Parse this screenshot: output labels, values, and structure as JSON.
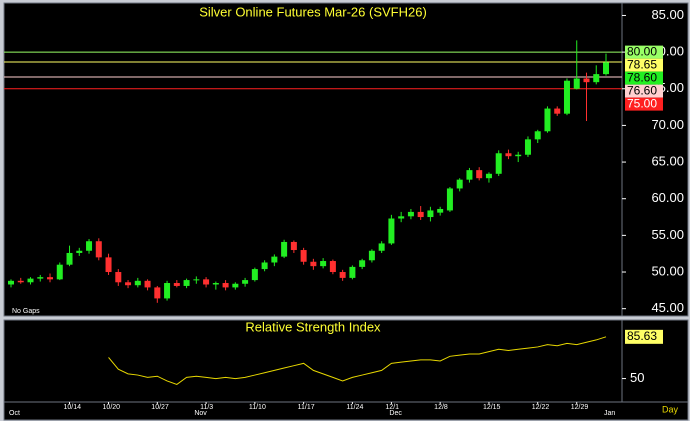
{
  "chart_data": {
    "type": "candlestick",
    "title": "Silver Online Futures Mar-26 (SVFH26)",
    "note": "No Gaps",
    "x_label": "Day",
    "categories": [
      null,
      null,
      null,
      null,
      null,
      null,
      "10/14",
      null,
      null,
      null,
      "10/20",
      null,
      null,
      null,
      null,
      "10/27",
      null,
      null,
      null,
      null,
      "11/3",
      null,
      null,
      null,
      null,
      "11/10",
      null,
      null,
      null,
      null,
      "11/17",
      null,
      null,
      null,
      null,
      "11/24",
      null,
      null,
      null,
      "12/1",
      null,
      null,
      null,
      null,
      "12/8",
      null,
      null,
      null,
      null,
      "12/15",
      null,
      null,
      null,
      null,
      "12/22",
      null,
      null,
      null,
      "12/29",
      null,
      null,
      null
    ],
    "month_categories": [
      "Oct",
      null,
      null,
      null,
      null,
      null,
      null,
      null,
      null,
      null,
      null,
      null,
      null,
      null,
      null,
      null,
      null,
      null,
      null,
      "Nov",
      null,
      null,
      null,
      null,
      null,
      null,
      null,
      null,
      null,
      null,
      null,
      null,
      null,
      null,
      null,
      null,
      null,
      null,
      null,
      "Dec",
      null,
      null,
      null,
      null,
      null,
      null,
      null,
      null,
      null,
      null,
      null,
      null,
      null,
      null,
      null,
      null,
      null,
      null,
      null,
      null,
      null,
      "Jan"
    ],
    "open": [
      48.3,
      48.8,
      48.6,
      49.1,
      49.3,
      49.0,
      51.0,
      52.6,
      52.9,
      54.2,
      52.0,
      50.0,
      48.6,
      48.2,
      48.8,
      47.9,
      46.4,
      48.5,
      48.1,
      48.9,
      49.0,
      48.3,
      48.5,
      47.9,
      48.4,
      48.9,
      50.4,
      51.3,
      52.1,
      54.1,
      53.0,
      51.4,
      50.8,
      51.5,
      50.0,
      49.2,
      50.7,
      51.6,
      52.9,
      53.9,
      57.3,
      57.6,
      58.2,
      57.5,
      58.1,
      58.4,
      61.4,
      62.6,
      63.9,
      62.8,
      63.4,
      66.2,
      65.8,
      66.0,
      68.1,
      69.2,
      72.3,
      71.6,
      75.0,
      76.4,
      75.9,
      77.0
    ],
    "high": [
      49.0,
      49.2,
      49.3,
      49.6,
      49.8,
      51.3,
      53.6,
      53.3,
      54.5,
      54.6,
      52.5,
      50.4,
      48.9,
      49.2,
      49.0,
      48.1,
      48.8,
      48.9,
      49.1,
      49.4,
      49.3,
      48.7,
      48.9,
      48.6,
      49.2,
      50.6,
      51.6,
      52.4,
      54.4,
      54.3,
      53.3,
      51.8,
      51.9,
      51.7,
      50.3,
      50.9,
      51.8,
      53.1,
      54.2,
      57.8,
      58.2,
      58.6,
      59.0,
      58.9,
      58.9,
      61.6,
      62.8,
      64.2,
      64.3,
      63.6,
      66.6,
      66.7,
      66.4,
      68.5,
      69.4,
      72.6,
      72.6,
      76.4,
      81.6,
      77.2,
      78.2,
      79.8
    ],
    "low": [
      47.9,
      48.4,
      48.3,
      48.7,
      48.6,
      48.9,
      50.8,
      52.2,
      52.5,
      51.6,
      49.6,
      48.1,
      47.8,
      47.9,
      47.5,
      45.8,
      46.1,
      47.9,
      47.8,
      48.4,
      47.9,
      47.6,
      47.5,
      47.6,
      48.0,
      48.7,
      50.1,
      50.8,
      51.9,
      52.6,
      51.0,
      50.3,
      50.5,
      49.7,
      48.8,
      49.0,
      50.4,
      51.3,
      52.6,
      53.7,
      56.8,
      57.2,
      57.1,
      56.9,
      57.7,
      58.2,
      61.0,
      62.2,
      62.5,
      62.2,
      63.1,
      65.4,
      65.0,
      65.7,
      67.6,
      69.0,
      71.3,
      71.4,
      74.9,
      70.6,
      75.6,
      76.8
    ],
    "close": [
      48.8,
      48.6,
      49.1,
      49.3,
      49.0,
      51.0,
      52.6,
      52.9,
      54.2,
      52.0,
      50.0,
      48.6,
      48.2,
      48.8,
      47.9,
      46.4,
      48.5,
      48.1,
      48.9,
      49.0,
      48.3,
      48.5,
      47.9,
      48.4,
      48.9,
      50.4,
      51.3,
      52.1,
      54.1,
      53.0,
      51.4,
      50.8,
      51.5,
      50.0,
      49.2,
      50.7,
      51.6,
      52.9,
      53.9,
      57.3,
      57.6,
      58.2,
      57.5,
      58.4,
      58.6,
      61.4,
      62.6,
      63.9,
      62.8,
      63.4,
      66.2,
      65.8,
      66.0,
      68.1,
      69.2,
      72.3,
      71.6,
      76.1,
      76.4,
      75.9,
      77.0,
      78.6
    ],
    "up_color": "#22ee22",
    "down_color": "#ff3030",
    "ylim": [
      44,
      86.7
    ],
    "yticks": [
      {
        "value": 45,
        "label": "45.00"
      },
      {
        "value": 50,
        "label": "50.00"
      },
      {
        "value": 55,
        "label": "55.00"
      },
      {
        "value": 60,
        "label": "60.00"
      },
      {
        "value": 65,
        "label": "65.00"
      },
      {
        "value": 70,
        "label": "70.00"
      },
      {
        "value": 75,
        "label": "75.00"
      },
      {
        "value": 80,
        "label": "80.00"
      },
      {
        "value": 85,
        "label": "85.00"
      }
    ],
    "levels": [
      {
        "value": 80,
        "label": "80.00",
        "color": "#99ff66",
        "text_color": "#000000",
        "line": true
      },
      {
        "value": 78.65,
        "label": "78.65",
        "color": "#ffff66",
        "text_color": "#000000",
        "line": true
      },
      {
        "value": 78.6,
        "label": "78.60",
        "color": "#22ee22",
        "text_color": "#000000",
        "line": false
      },
      {
        "value": 76.6,
        "label": "76.60",
        "color": "#ffd0d0",
        "text_color": "#000000",
        "line": true
      },
      {
        "value": 75,
        "label": "75.00",
        "color": "#ff2020",
        "text_color": "#ffffff",
        "line": true
      }
    ],
    "indicator": {
      "title": "Relative Strength Index",
      "color": "#e8d800",
      "ylim": [
        30,
        100
      ],
      "yticks": [
        50
      ],
      "values": [
        null,
        null,
        null,
        null,
        null,
        null,
        null,
        null,
        null,
        null,
        68,
        58,
        54,
        53,
        51,
        52,
        48,
        45,
        51,
        52,
        51,
        50,
        51,
        50,
        51,
        53,
        55,
        57,
        59,
        61,
        63,
        57,
        54,
        51,
        48,
        51,
        53,
        55,
        57,
        63,
        64,
        65,
        66,
        66,
        65,
        69,
        70,
        71,
        71,
        73,
        75,
        74,
        75,
        76,
        77,
        79,
        78,
        80,
        79,
        81,
        83,
        85.63
      ],
      "last_label": "85.63",
      "last_color": "#ffff66"
    }
  }
}
